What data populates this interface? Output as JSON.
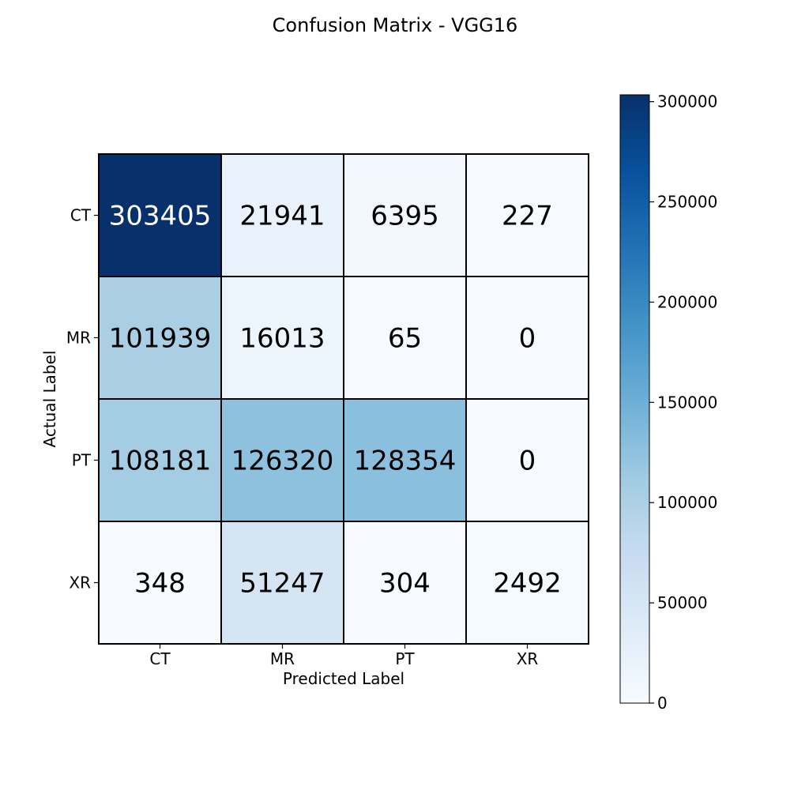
{
  "chart_data": {
    "type": "heatmap",
    "title": "Confusion Matrix - VGG16",
    "xlabel": "Predicted Label",
    "ylabel": "Actual Label",
    "x_categories": [
      "CT",
      "MR",
      "PT",
      "XR"
    ],
    "y_categories": [
      "CT",
      "MR",
      "PT",
      "XR"
    ],
    "values": [
      [
        303405,
        21941,
        6395,
        227
      ],
      [
        101939,
        16013,
        65,
        0
      ],
      [
        108181,
        126320,
        128354,
        0
      ],
      [
        348,
        51247,
        304,
        2492
      ]
    ],
    "colormap": "Blues",
    "colorbar": {
      "range": [
        0,
        303405
      ],
      "ticks": [
        0,
        50000,
        100000,
        150000,
        200000,
        250000,
        300000
      ],
      "tick_labels": [
        "0",
        "50000",
        "100000",
        "150000",
        "200000",
        "250000",
        "300000"
      ]
    },
    "grid": true
  }
}
